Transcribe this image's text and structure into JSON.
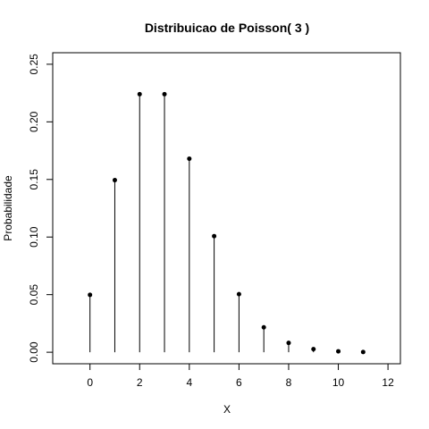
{
  "chart_data": {
    "type": "scatter",
    "style": "stem",
    "title": "Distribuicao de Poisson( 3 )",
    "xlabel": "X",
    "ylabel": "Probabilidade",
    "xlim": [
      -1.5,
      12.5
    ],
    "ylim": [
      -0.01,
      0.26
    ],
    "x_ticks": [
      0,
      2,
      4,
      6,
      8,
      10,
      12
    ],
    "x_tick_labels": [
      "0",
      "2",
      "4",
      "6",
      "8",
      "10",
      "12"
    ],
    "y_ticks": [
      0.0,
      0.05,
      0.1,
      0.15,
      0.2,
      0.25
    ],
    "y_tick_labels": [
      "0.00",
      "0.05",
      "0.10",
      "0.15",
      "0.20",
      "0.25"
    ],
    "grid": false,
    "legend": "none",
    "series": [
      {
        "x": [
          0,
          1,
          2,
          3,
          4,
          5,
          6,
          7,
          8,
          9,
          10,
          11
        ],
        "values": [
          0.0498,
          0.1494,
          0.224,
          0.224,
          0.168,
          0.1008,
          0.0504,
          0.0216,
          0.0081,
          0.0027,
          0.0008,
          0.0002
        ]
      }
    ],
    "colors": {
      "stem": "#000000",
      "point": "#000000"
    }
  }
}
